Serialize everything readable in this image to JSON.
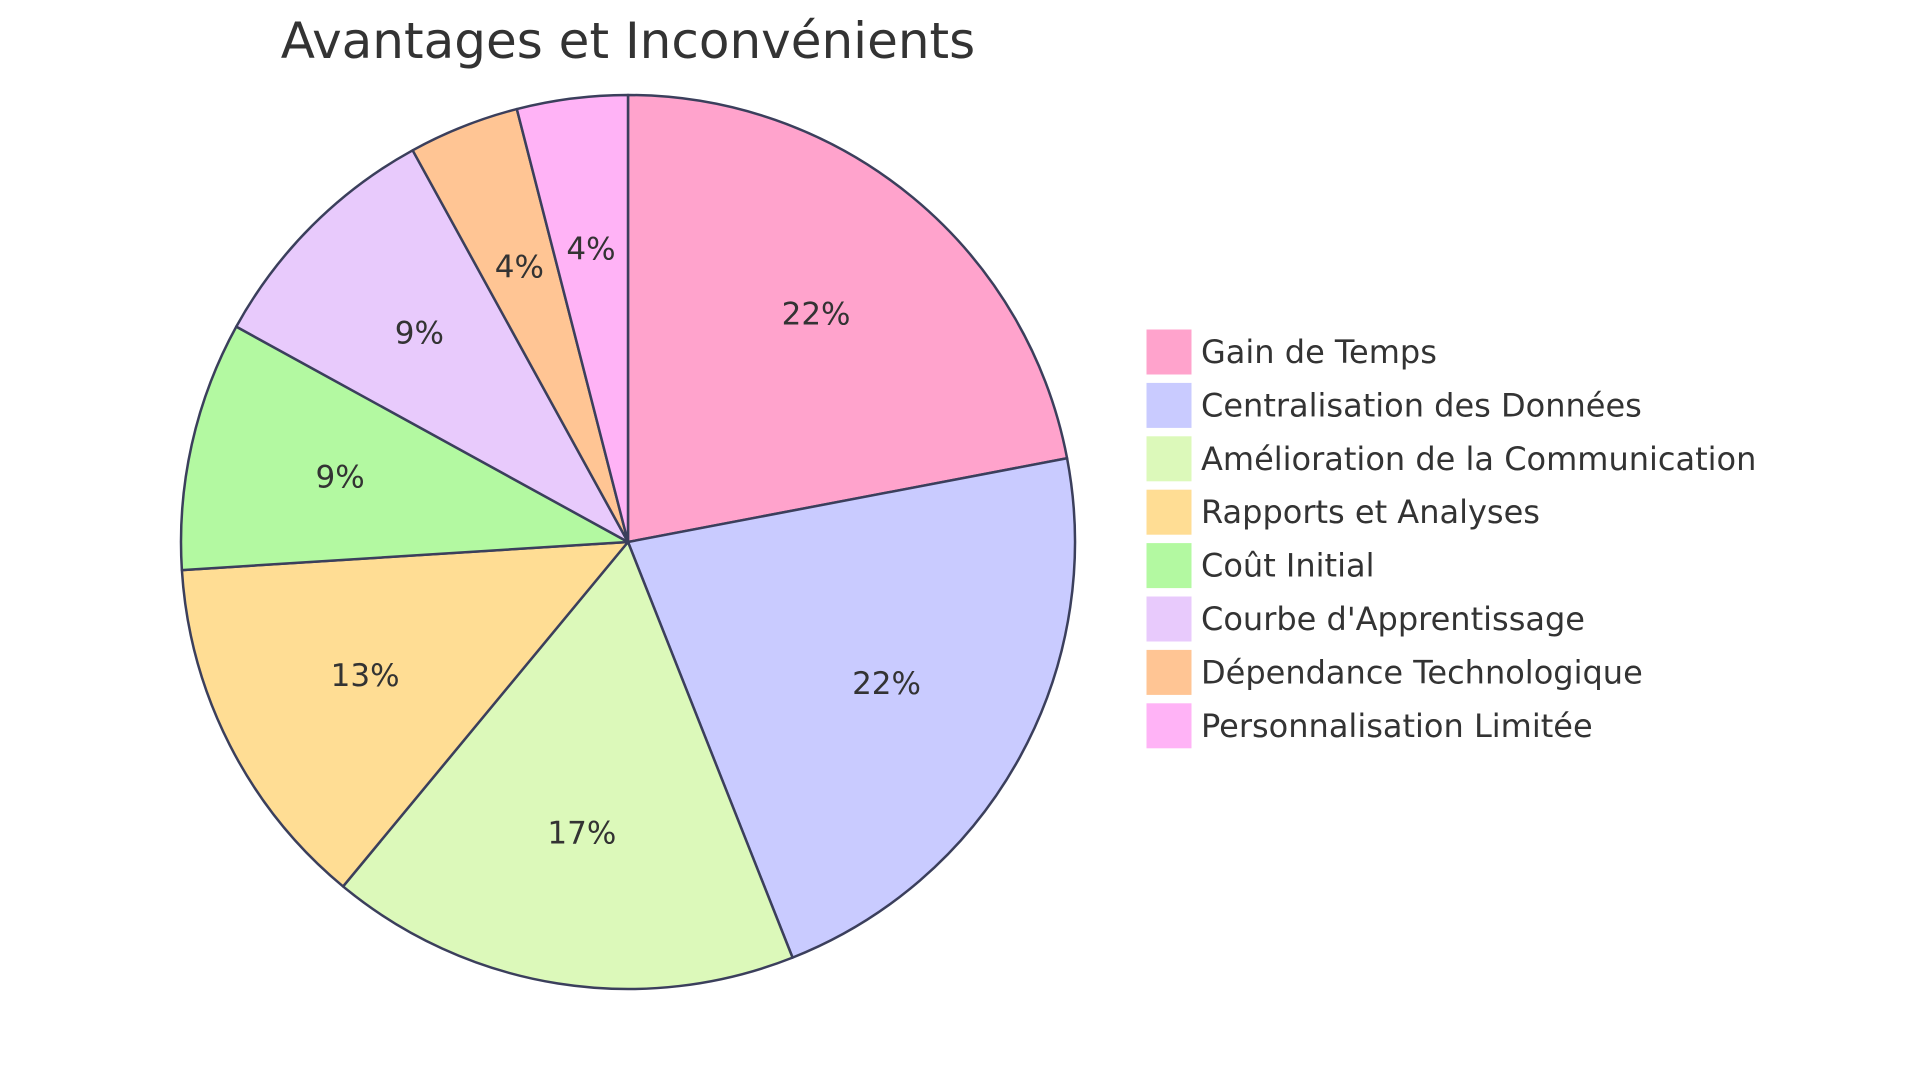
{
  "chart_data": {
    "type": "pie",
    "title": "Avantages et Inconvénients",
    "legend_position": "right",
    "start_angle": "top, clockwise",
    "categories": [
      "Gain de Temps",
      "Centralisation des Données",
      "Amélioration de la Communication",
      "Rapports et Analyses",
      "Coût Initial",
      "Courbe d'Apprentissage",
      "Dépendance Technologique",
      "Personnalisation Limitée"
    ],
    "values": [
      22,
      22,
      17,
      13,
      9,
      9,
      4,
      4
    ],
    "value_labels": [
      "22%",
      "22%",
      "17%",
      "13%",
      "9%",
      "9%",
      "4%",
      "4%"
    ],
    "colors": [
      "#FFA3CC",
      "#C9CBFF",
      "#DCF9BA",
      "#FFDD94",
      "#B3F9A1",
      "#E8CAFC",
      "#FFC594",
      "#FFB3F6"
    ],
    "stroke_color": "#3b3f5c"
  }
}
